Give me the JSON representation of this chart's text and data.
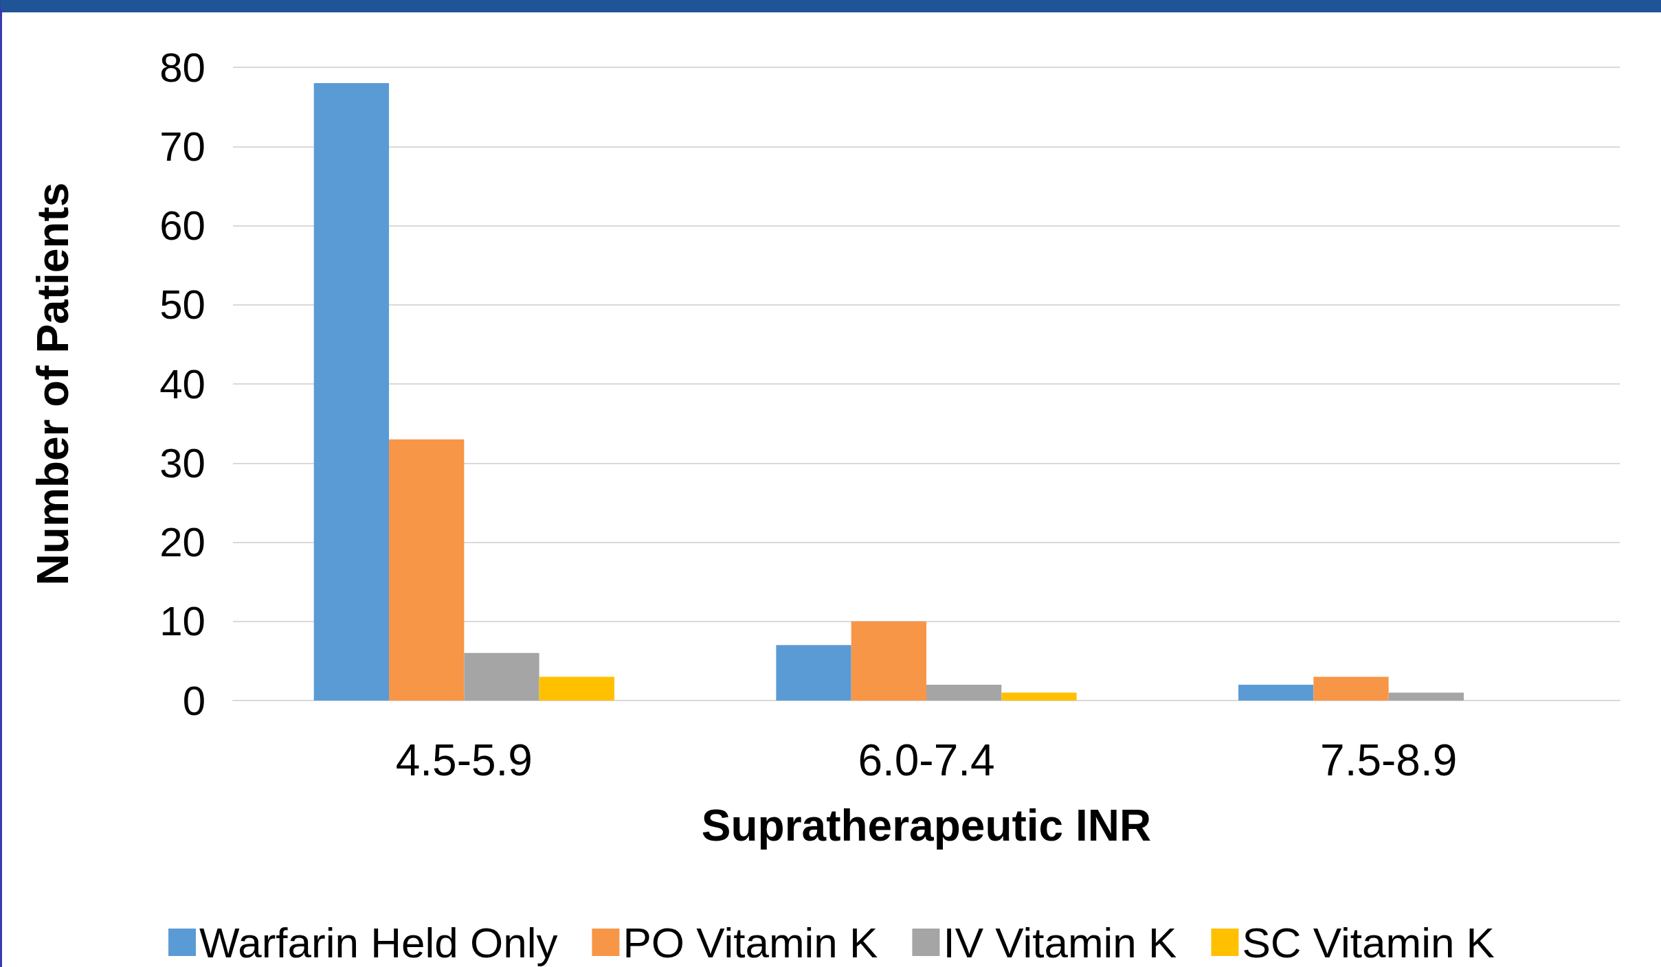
{
  "chart_data": {
    "type": "bar",
    "xlabel": "Supratherapeutic INR",
    "ylabel": "Number of Patients",
    "categories": [
      "4.5-5.9",
      "6.0-7.4",
      "7.5-8.9"
    ],
    "series": [
      {
        "name": "Warfarin Held Only",
        "color": "#5b9bd5",
        "values": [
          78,
          7,
          2
        ]
      },
      {
        "name": "PO Vitamin K",
        "color": "#f79646",
        "values": [
          33,
          10,
          3
        ]
      },
      {
        "name": "IV Vitamin K",
        "color": "#a5a5a5",
        "values": [
          6,
          2,
          1
        ]
      },
      {
        "name": "SC Vitamin K",
        "color": "#ffc000",
        "values": [
          3,
          1,
          0
        ]
      }
    ],
    "ylim": [
      0,
      80
    ],
    "yticks": [
      0,
      10,
      20,
      30,
      40,
      50,
      60,
      70,
      80
    ],
    "grid": "y",
    "legend": "bottom"
  }
}
